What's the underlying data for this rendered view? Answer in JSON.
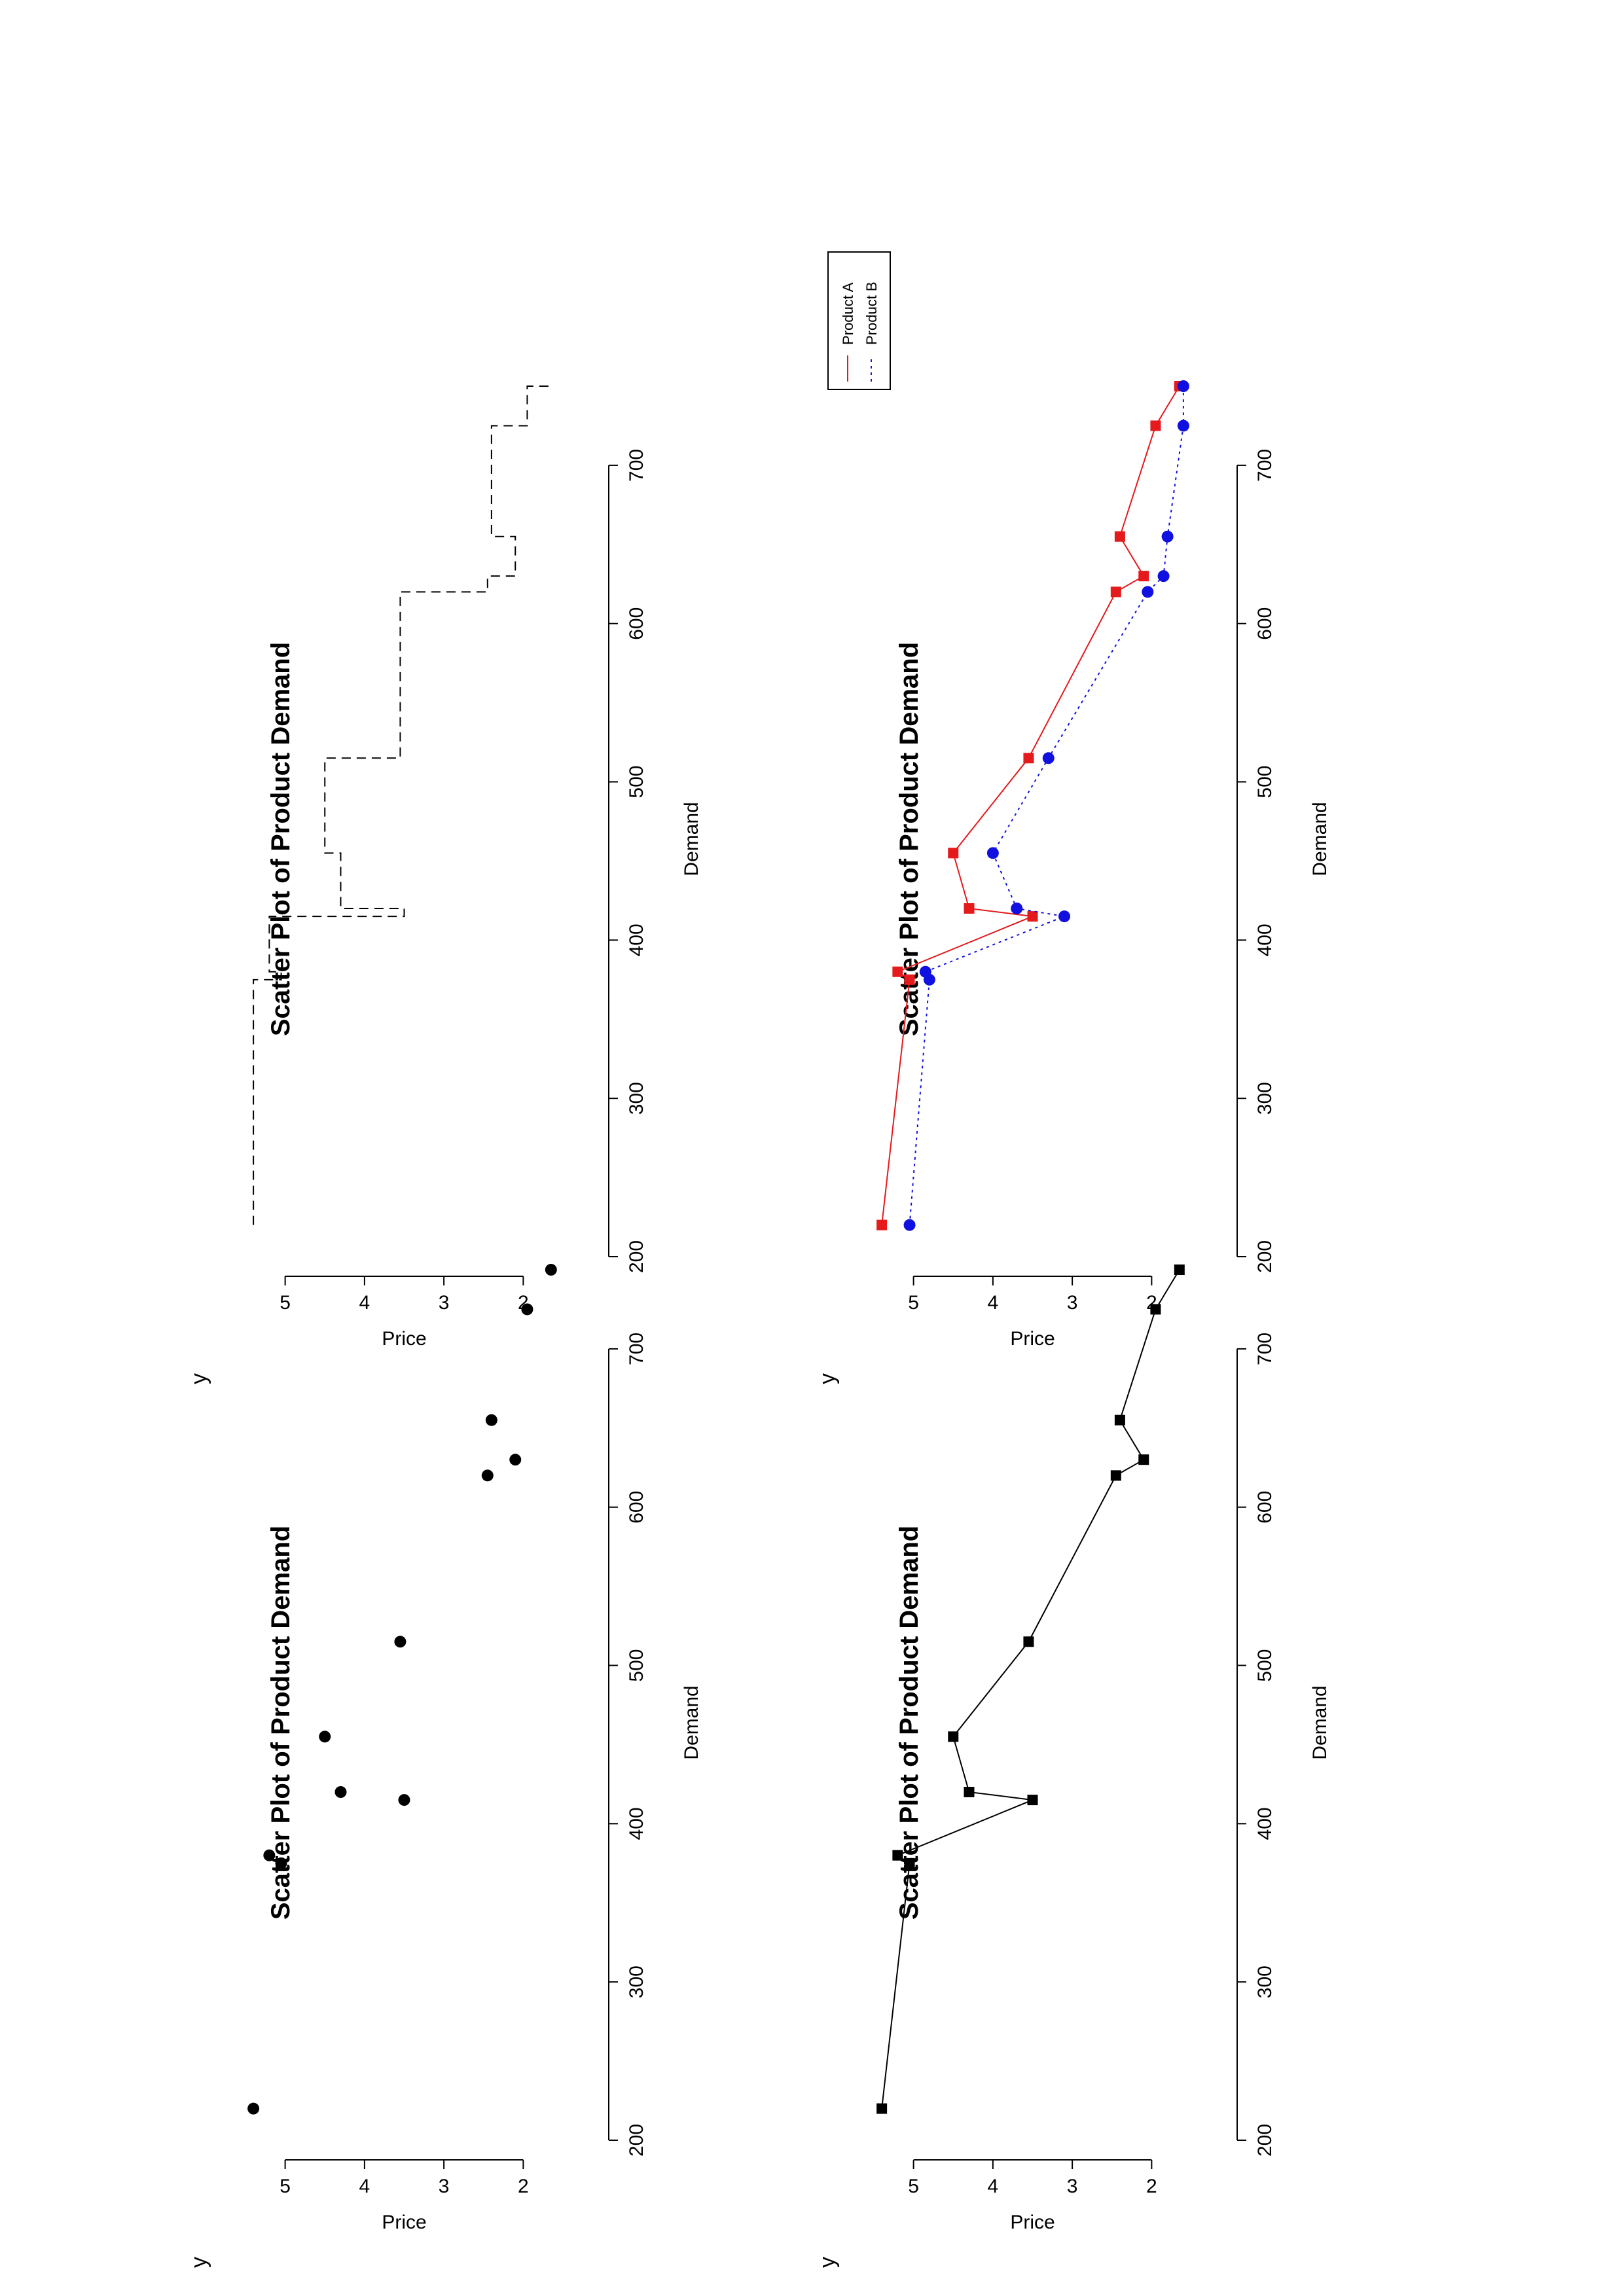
{
  "panel_tag": "y",
  "chart_data": [
    {
      "type": "scatter",
      "title": "Scatter Plot of Product Demand",
      "xlabel": "Demand",
      "ylabel": "Price",
      "xlim": [
        200,
        750
      ],
      "ylim": [
        1.5,
        5.5
      ],
      "xticks": [
        "200",
        "300",
        "400",
        "500",
        "600",
        "700"
      ],
      "yticks": [
        "2",
        "3",
        "4",
        "5"
      ],
      "grid": false,
      "marker": "circle",
      "series": [
        {
          "color": "#000000",
          "points": [
            {
              "x": 220,
              "y": 5.4
            },
            {
              "x": 375,
              "y": 5.05
            },
            {
              "x": 380,
              "y": 5.2
            },
            {
              "x": 415,
              "y": 3.5
            },
            {
              "x": 420,
              "y": 4.3
            },
            {
              "x": 455,
              "y": 4.5
            },
            {
              "x": 515,
              "y": 3.55
            },
            {
              "x": 620,
              "y": 2.45
            },
            {
              "x": 630,
              "y": 2.1
            },
            {
              "x": 655,
              "y": 2.4
            },
            {
              "x": 725,
              "y": 1.95
            },
            {
              "x": 750,
              "y": 1.65
            }
          ]
        }
      ]
    },
    {
      "type": "line",
      "title": "Scatter Plot of Product Demand",
      "xlabel": "Demand",
      "ylabel": "Price",
      "xlim": [
        200,
        750
      ],
      "ylim": [
        1.5,
        5.5
      ],
      "xticks": [
        "200",
        "300",
        "400",
        "500",
        "600",
        "700"
      ],
      "yticks": [
        "2",
        "3",
        "4",
        "5"
      ],
      "grid": false,
      "step": true,
      "series": [
        {
          "color": "#000000",
          "dash": "dashed",
          "points": [
            {
              "x": 220,
              "y": 5.4
            },
            {
              "x": 375,
              "y": 5.05
            },
            {
              "x": 380,
              "y": 5.2
            },
            {
              "x": 415,
              "y": 3.5
            },
            {
              "x": 420,
              "y": 4.3
            },
            {
              "x": 455,
              "y": 4.5
            },
            {
              "x": 515,
              "y": 3.55
            },
            {
              "x": 620,
              "y": 2.45
            },
            {
              "x": 630,
              "y": 2.1
            },
            {
              "x": 655,
              "y": 2.4
            },
            {
              "x": 725,
              "y": 1.95
            },
            {
              "x": 750,
              "y": 1.65
            }
          ]
        }
      ]
    },
    {
      "type": "line",
      "title": "Scatter Plot of Product Demand",
      "xlabel": "Demand",
      "ylabel": "Price",
      "xlim": [
        200,
        750
      ],
      "ylim": [
        1.5,
        5.5
      ],
      "xticks": [
        "200",
        "300",
        "400",
        "500",
        "600",
        "700"
      ],
      "yticks": [
        "2",
        "3",
        "4",
        "5"
      ],
      "grid": false,
      "marker": "square",
      "series": [
        {
          "color": "#000000",
          "points": [
            {
              "x": 220,
              "y": 5.4
            },
            {
              "x": 375,
              "y": 5.05
            },
            {
              "x": 380,
              "y": 5.2
            },
            {
              "x": 415,
              "y": 3.5
            },
            {
              "x": 420,
              "y": 4.3
            },
            {
              "x": 455,
              "y": 4.5
            },
            {
              "x": 515,
              "y": 3.55
            },
            {
              "x": 620,
              "y": 2.45
            },
            {
              "x": 630,
              "y": 2.1
            },
            {
              "x": 655,
              "y": 2.4
            },
            {
              "x": 725,
              "y": 1.95
            },
            {
              "x": 750,
              "y": 1.65
            }
          ]
        }
      ]
    },
    {
      "type": "line",
      "title": "Scatter Plot of Product Demand",
      "xlabel": "Demand",
      "ylabel": "Price",
      "xlim": [
        200,
        750
      ],
      "ylim": [
        1.5,
        5.5
      ],
      "xticks": [
        "200",
        "300",
        "400",
        "500",
        "600",
        "700"
      ],
      "yticks": [
        "2",
        "3",
        "4",
        "5"
      ],
      "grid": false,
      "legend_position": "top-right",
      "series": [
        {
          "name": "Product A",
          "color": "#e41a1c",
          "marker": "square",
          "dash": "solid",
          "points": [
            {
              "x": 220,
              "y": 5.4
            },
            {
              "x": 375,
              "y": 5.05
            },
            {
              "x": 380,
              "y": 5.2
            },
            {
              "x": 415,
              "y": 3.5
            },
            {
              "x": 420,
              "y": 4.3
            },
            {
              "x": 455,
              "y": 4.5
            },
            {
              "x": 515,
              "y": 3.55
            },
            {
              "x": 620,
              "y": 2.45
            },
            {
              "x": 630,
              "y": 2.1
            },
            {
              "x": 655,
              "y": 2.4
            },
            {
              "x": 725,
              "y": 1.95
            },
            {
              "x": 750,
              "y": 1.65
            }
          ]
        },
        {
          "name": "Product B",
          "color": "#1010e0",
          "marker": "circle",
          "dash": "dotted",
          "points": [
            {
              "x": 220,
              "y": 5.05
            },
            {
              "x": 375,
              "y": 4.8
            },
            {
              "x": 380,
              "y": 4.85
            },
            {
              "x": 415,
              "y": 3.1
            },
            {
              "x": 420,
              "y": 3.7
            },
            {
              "x": 455,
              "y": 4.0
            },
            {
              "x": 515,
              "y": 3.3
            },
            {
              "x": 620,
              "y": 2.05
            },
            {
              "x": 630,
              "y": 1.85
            },
            {
              "x": 655,
              "y": 1.8
            },
            {
              "x": 725,
              "y": 1.6
            },
            {
              "x": 750,
              "y": 1.6
            }
          ]
        }
      ]
    }
  ]
}
